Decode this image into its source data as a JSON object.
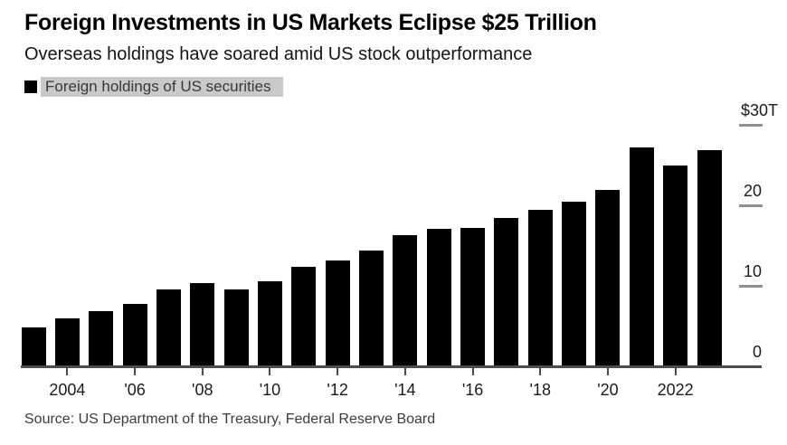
{
  "header": {
    "title": "Foreign Investments in US Markets Eclipse $25 Trillion",
    "subtitle": "Overseas holdings have soared amid US stock outperformance"
  },
  "legend": {
    "label": "Foreign holdings of US securities",
    "swatch_color": "#000000",
    "highlight_color": "#c9c9c9"
  },
  "source": "Source: US Department of the Treasury, Federal Reserve Board",
  "colors": {
    "bar": "#000000",
    "axis_line": "#4c4c4c",
    "tick_dash": "#8f8f8f",
    "background": "#ffffff"
  },
  "chart_data": {
    "type": "bar",
    "title": "Foreign Investments in US Markets Eclipse $25 Trillion",
    "subtitle": "Overseas holdings have soared amid US stock outperformance",
    "series_name": "Foreign holdings of US securities",
    "unit": "USD trillions",
    "categories": [
      2003,
      2004,
      2005,
      2006,
      2007,
      2008,
      2009,
      2010,
      2011,
      2012,
      2013,
      2014,
      2015,
      2016,
      2017,
      2018,
      2019,
      2020,
      2021,
      2022,
      2023
    ],
    "values": [
      4.8,
      5.9,
      6.8,
      7.7,
      9.6,
      10.3,
      9.6,
      10.6,
      12.4,
      13.2,
      14.4,
      16.3,
      17.1,
      17.2,
      18.4,
      19.4,
      20.5,
      21.9,
      27.2,
      25.0,
      26.9
    ],
    "ylim": [
      0,
      30
    ],
    "y_ticks": [
      {
        "label": "$30T",
        "value": 30
      },
      {
        "label": "20",
        "value": 20
      },
      {
        "label": "10",
        "value": 10
      },
      {
        "label": "0",
        "value": 0
      }
    ],
    "x_ticks": [
      {
        "label": "2004",
        "year": 2004
      },
      {
        "label": "'06",
        "year": 2006
      },
      {
        "label": "'08",
        "year": 2008
      },
      {
        "label": "'10",
        "year": 2010
      },
      {
        "label": "'12",
        "year": 2012
      },
      {
        "label": "'14",
        "year": 2014
      },
      {
        "label": "'16",
        "year": 2016
      },
      {
        "label": "'18",
        "year": 2018
      },
      {
        "label": "'20",
        "year": 2020
      },
      {
        "label": "2022",
        "year": 2022
      }
    ],
    "legend_position": "top-left",
    "y_axis_side": "right",
    "grid": "short right-edge dashes at labeled values only",
    "bar_color": "#000000"
  }
}
